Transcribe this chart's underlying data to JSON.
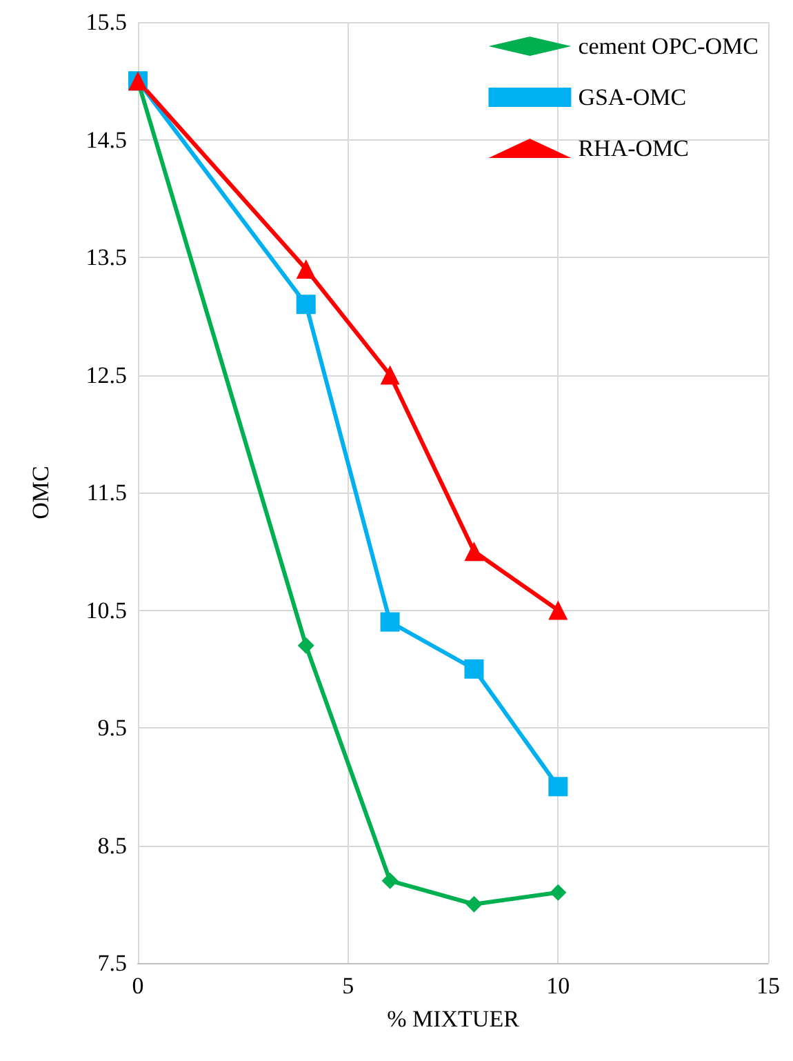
{
  "chart_data": {
    "type": "line",
    "xlabel": "% MIXTUER",
    "ylabel": "OMC",
    "x": [
      0,
      4,
      6,
      8,
      10
    ],
    "series": [
      {
        "name": "cement OPC-OMC",
        "color": "#00b050",
        "marker": "diamond",
        "values": [
          15,
          10.2,
          8.2,
          8.0,
          8.1
        ]
      },
      {
        "name": "GSA-OMC",
        "color": "#00b0f0",
        "marker": "square",
        "values": [
          15,
          13.1,
          10.4,
          10.0,
          9.0
        ]
      },
      {
        "name": "RHA-OMC",
        "color": "#ff0000",
        "marker": "triangle",
        "values": [
          15,
          13.4,
          12.5,
          11.0,
          10.5
        ]
      }
    ],
    "xlim": [
      0,
      15
    ],
    "xticks": [
      0,
      5,
      10,
      15
    ],
    "ylim": [
      7.5,
      15.5
    ],
    "yticks": [
      7.5,
      8.5,
      9.5,
      10.5,
      11.5,
      12.5,
      13.5,
      14.5,
      15.5
    ],
    "grid": true,
    "legend": "top right",
    "line_style": "solid"
  }
}
